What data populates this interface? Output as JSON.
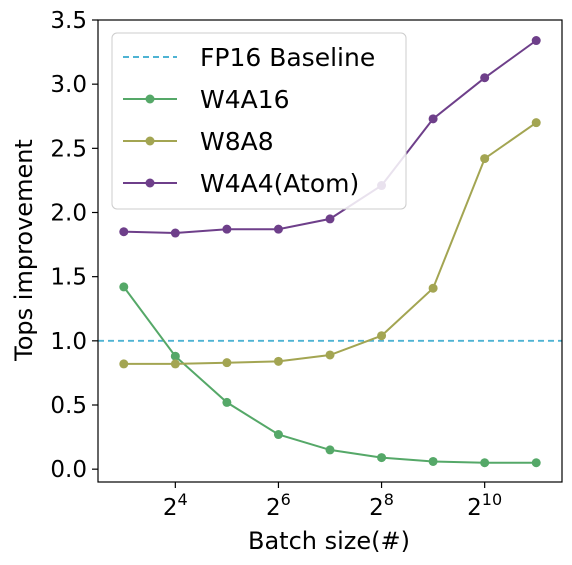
{
  "chart_data": {
    "type": "line",
    "xlabel": "Batch size(#)",
    "ylabel": "Tops improvement",
    "x_scale": "log2",
    "x": [
      8,
      16,
      32,
      64,
      128,
      256,
      512,
      1024,
      2048
    ],
    "x_ticks": [
      {
        "base": "2",
        "exp": "4",
        "value": 16
      },
      {
        "base": "2",
        "exp": "6",
        "value": 64
      },
      {
        "base": "2",
        "exp": "8",
        "value": 256
      },
      {
        "base": "2",
        "exp": "10",
        "value": 1024
      }
    ],
    "ylim": [
      -0.1,
      3.5
    ],
    "y_ticks": [
      "0.0",
      "0.5",
      "1.0",
      "1.5",
      "2.0",
      "2.5",
      "3.0",
      "3.5"
    ],
    "grid": false,
    "legend_position": "top-left",
    "baseline": {
      "name": "FP16 Baseline",
      "value": 1.0,
      "color": "#4eb3d3",
      "style": "dashed"
    },
    "series": [
      {
        "name": "W4A16",
        "color": "#55a868",
        "values": [
          1.42,
          0.88,
          0.52,
          0.27,
          0.15,
          0.09,
          0.06,
          0.05,
          0.05
        ]
      },
      {
        "name": "W8A8",
        "color": "#a3a552",
        "values": [
          0.82,
          0.82,
          0.83,
          0.84,
          0.89,
          1.04,
          1.41,
          2.42,
          2.7
        ]
      },
      {
        "name": "W4A4(Atom)",
        "color": "#6e3f8a",
        "values": [
          1.85,
          1.84,
          1.87,
          1.87,
          1.95,
          2.21,
          2.73,
          3.05,
          3.34
        ]
      }
    ]
  }
}
